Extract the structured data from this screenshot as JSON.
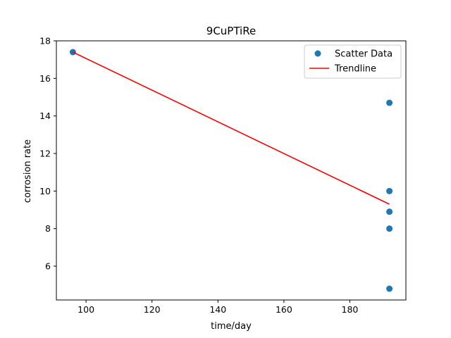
{
  "chart_data": {
    "type": "scatter",
    "title": "9CuPTiRe",
    "xlabel": "time/day",
    "ylabel": "corrosion rate",
    "xlim": [
      91,
      197
    ],
    "ylim": [
      4.2,
      18
    ],
    "x_ticks": [
      100,
      120,
      140,
      160,
      180
    ],
    "y_ticks": [
      6,
      8,
      10,
      12,
      14,
      16,
      18
    ],
    "grid": false,
    "legend_position": "top-right",
    "series": [
      {
        "name": "Scatter Data",
        "kind": "scatter",
        "color": "#1f77b4",
        "points": [
          {
            "x": 96,
            "y": 17.4
          },
          {
            "x": 192,
            "y": 14.7
          },
          {
            "x": 192,
            "y": 10.0
          },
          {
            "x": 192,
            "y": 8.9
          },
          {
            "x": 192,
            "y": 8.0
          },
          {
            "x": 192,
            "y": 4.8
          }
        ]
      },
      {
        "name": "Trendline",
        "kind": "line",
        "color": "#ff0000",
        "points": [
          {
            "x": 96,
            "y": 17.4
          },
          {
            "x": 192,
            "y": 9.3
          }
        ]
      }
    ]
  }
}
